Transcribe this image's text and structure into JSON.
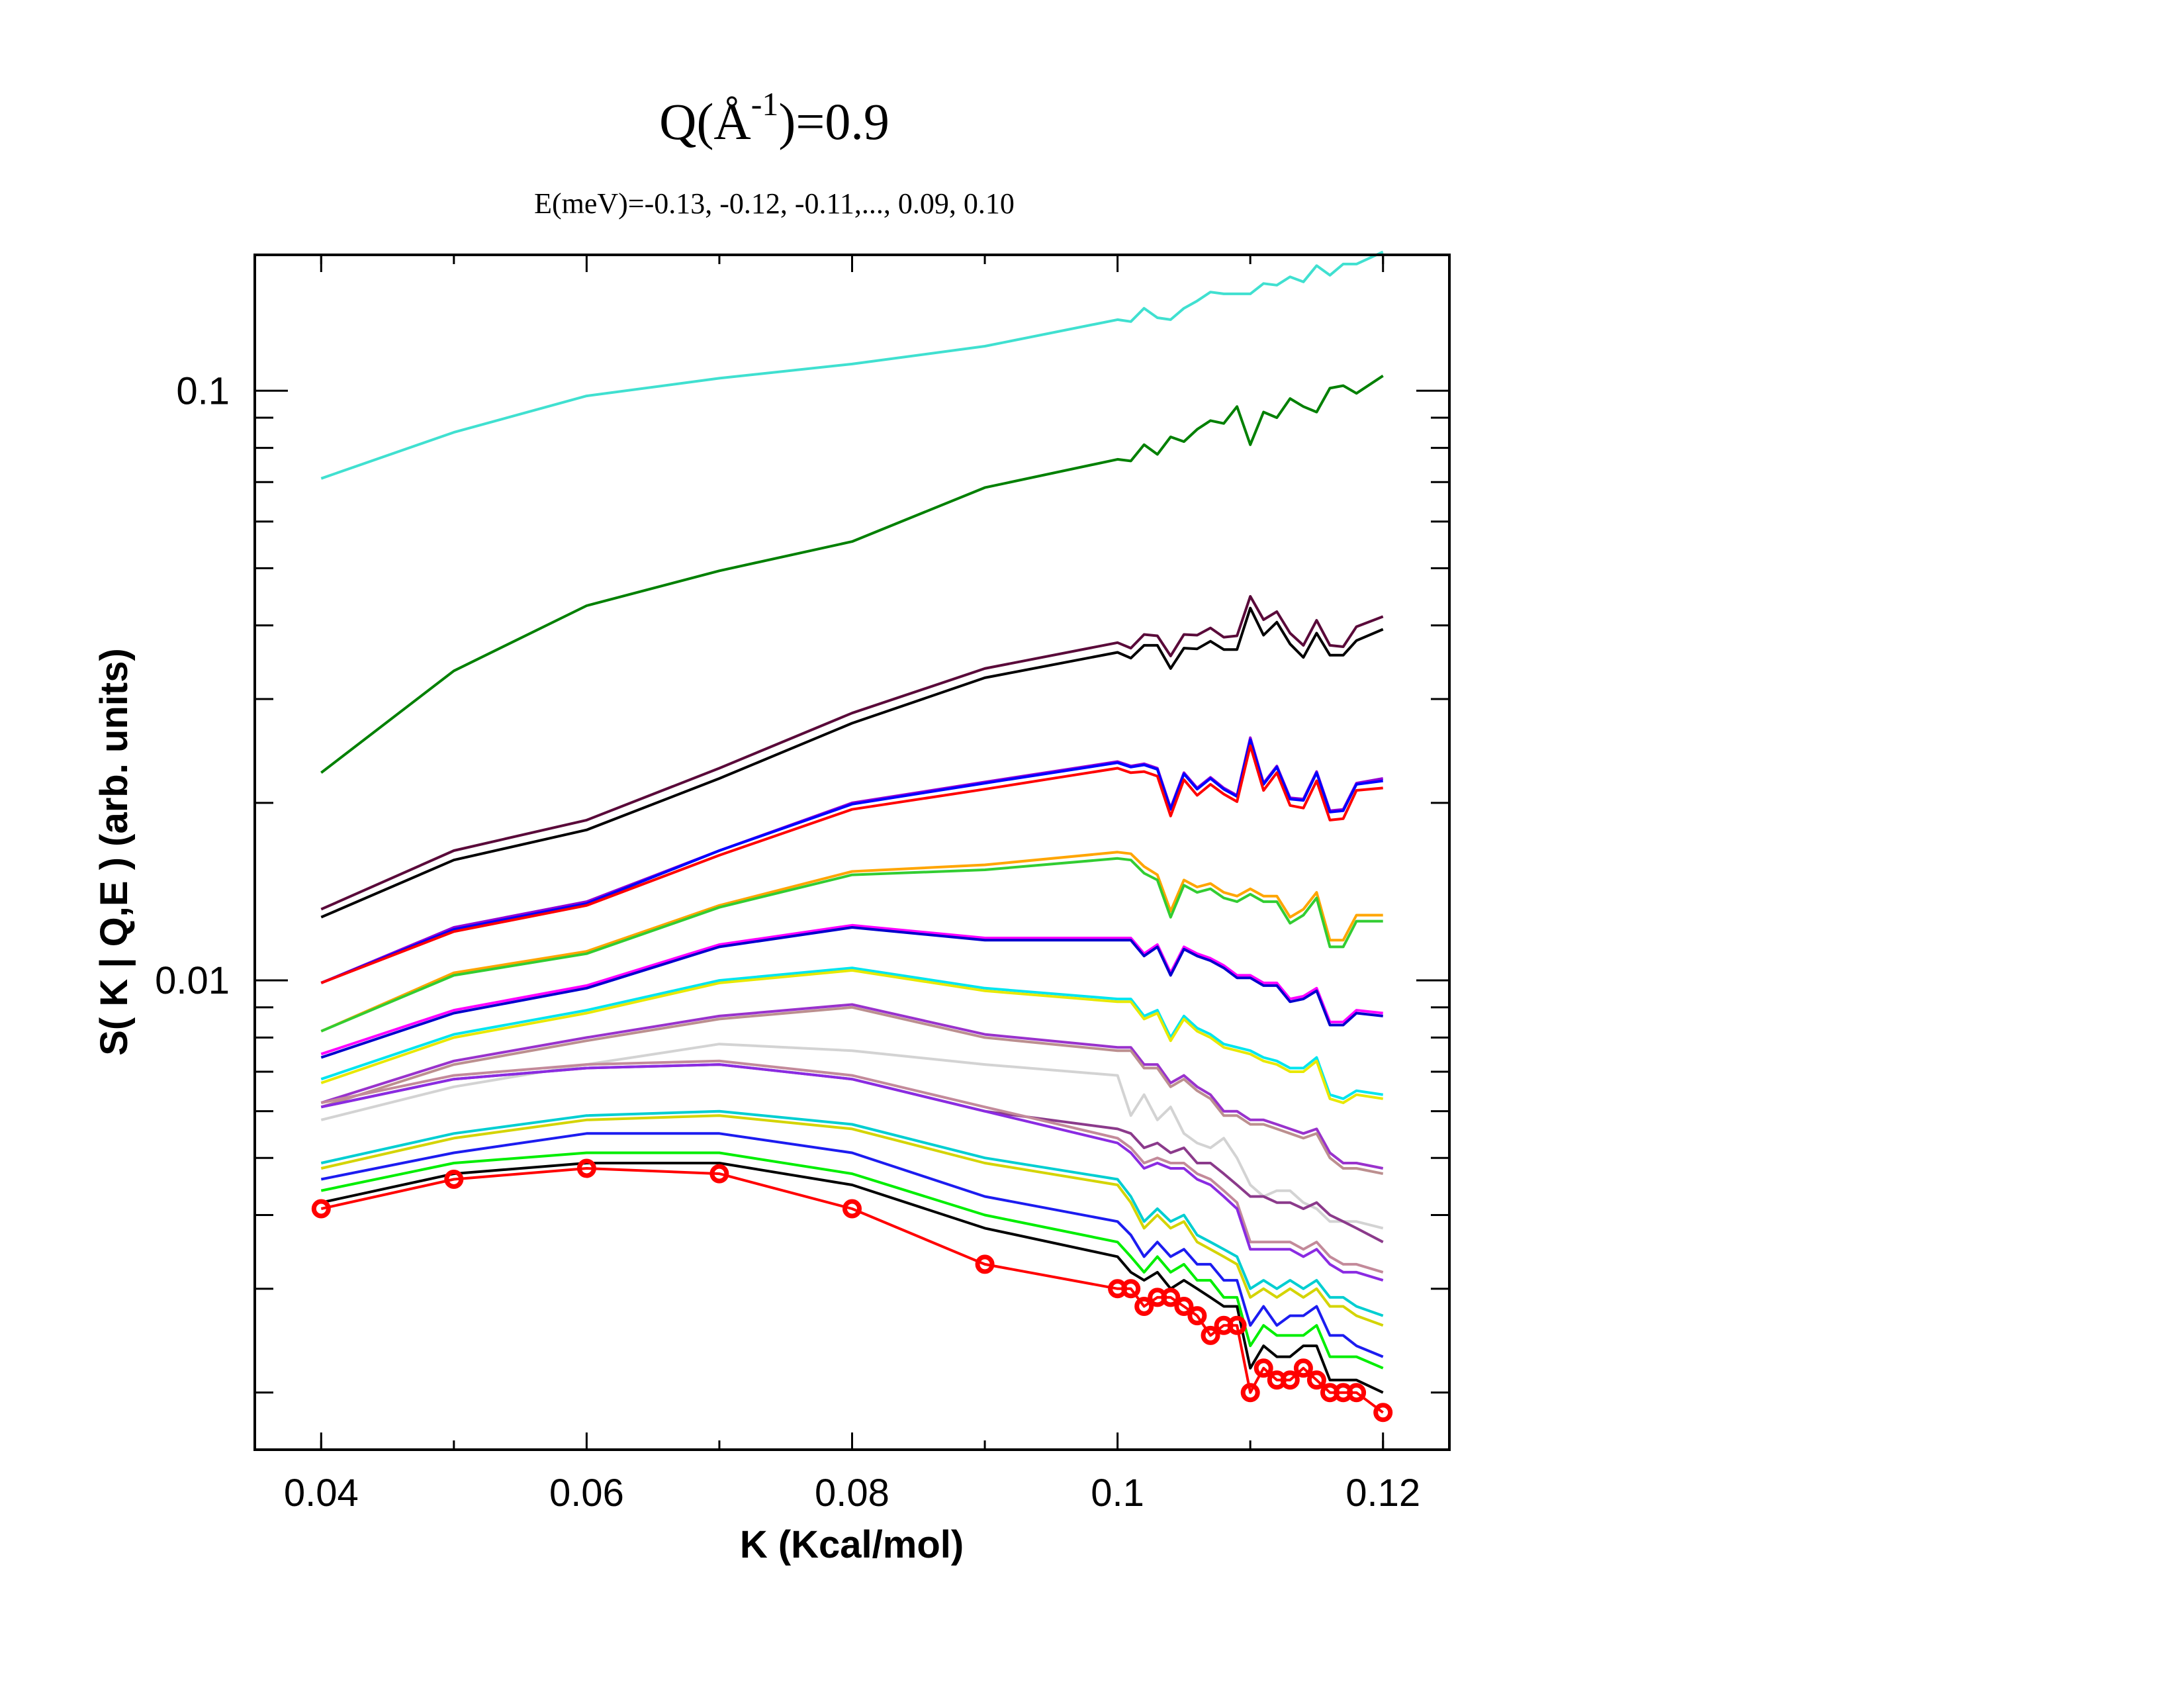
{
  "chart_data": {
    "type": "line",
    "title": {
      "prefix": "Q(Å",
      "sup": "-1",
      "suffix": ")=0.9"
    },
    "subtitle": "E(meV)=-0.13, -0.12, -0.11,..., 0.09, 0.10",
    "xlabel": "K (Kcal/mol)",
    "ylabel": "S( K | Q,E )  (arb. units)",
    "xlim": [
      0.035,
      0.125
    ],
    "ylim": [
      0.0016,
      0.17
    ],
    "yscale": "log",
    "grid": false,
    "x_ticks": [
      {
        "value": 0.04,
        "label": "0.04"
      },
      {
        "value": 0.06,
        "label": "0.06"
      },
      {
        "value": 0.08,
        "label": "0.08"
      },
      {
        "value": 0.1,
        "label": "0.1"
      },
      {
        "value": 0.12,
        "label": "0.12"
      }
    ],
    "y_ticks": [
      {
        "value": 0.01,
        "label": "0.01"
      },
      {
        "value": 0.1,
        "label": "0.1"
      }
    ],
    "x": [
      0.04,
      0.05,
      0.06,
      0.07,
      0.08,
      0.09,
      0.1,
      0.101,
      0.102,
      0.103,
      0.104,
      0.105,
      0.106,
      0.107,
      0.108,
      0.109,
      0.11,
      0.111,
      0.112,
      0.113,
      0.114,
      0.115,
      0.116,
      0.117,
      0.118,
      0.12
    ],
    "series": [
      {
        "color": "#40e0d0",
        "values": [
          0.071,
          0.085,
          0.098,
          0.105,
          0.111,
          0.119,
          0.132,
          0.131,
          0.138,
          0.133,
          0.132,
          0.138,
          0.142,
          0.147,
          0.146,
          0.146,
          0.146,
          0.152,
          0.151,
          0.156,
          0.153,
          0.163,
          0.157,
          0.164,
          0.164,
          0.172
        ]
      },
      {
        "color": "#008000",
        "values": [
          0.0225,
          0.0335,
          0.0432,
          0.0495,
          0.0555,
          0.0685,
          0.0765,
          0.076,
          0.081,
          0.078,
          0.0835,
          0.082,
          0.086,
          0.089,
          0.088,
          0.094,
          0.081,
          0.092,
          0.09,
          0.097,
          0.094,
          0.092,
          0.101,
          0.102,
          0.099,
          0.106
        ]
      },
      {
        "color": "#5a0a3a",
        "values": [
          0.0132,
          0.0166,
          0.0187,
          0.0229,
          0.0284,
          0.0338,
          0.0374,
          0.0366,
          0.0386,
          0.0384,
          0.0355,
          0.0386,
          0.0385,
          0.0396,
          0.0382,
          0.0384,
          0.0448,
          0.0409,
          0.0422,
          0.0388,
          0.037,
          0.0408,
          0.037,
          0.0368,
          0.0398,
          0.0414
        ]
      },
      {
        "color": "#000000",
        "values": [
          0.0128,
          0.016,
          0.018,
          0.022,
          0.0273,
          0.0326,
          0.036,
          0.0352,
          0.037,
          0.037,
          0.0338,
          0.0366,
          0.0365,
          0.0376,
          0.0364,
          0.0364,
          0.0428,
          0.0385,
          0.0405,
          0.0372,
          0.0353,
          0.0388,
          0.0356,
          0.0356,
          0.0377,
          0.0394
        ]
      },
      {
        "color": "#9400d3",
        "values": [
          0.0099,
          0.0123,
          0.0136,
          0.0166,
          0.02,
          0.0217,
          0.0235,
          0.0231,
          0.0233,
          0.0229,
          0.0196,
          0.0225,
          0.0212,
          0.0221,
          0.0212,
          0.0206,
          0.0258,
          0.0216,
          0.0231,
          0.0204,
          0.0203,
          0.0226,
          0.0194,
          0.0195,
          0.0216,
          0.022
        ]
      },
      {
        "color": "#0000ff",
        "values": [
          0.0099,
          0.0122,
          0.0135,
          0.0166,
          0.0199,
          0.0216,
          0.0234,
          0.023,
          0.0232,
          0.0228,
          0.0195,
          0.0224,
          0.0211,
          0.022,
          0.0211,
          0.0205,
          0.0256,
          0.0215,
          0.023,
          0.0203,
          0.0202,
          0.0225,
          0.0193,
          0.0194,
          0.0215,
          0.0218
        ]
      },
      {
        "color": "#ff0000",
        "values": [
          0.0099,
          0.0121,
          0.0134,
          0.0163,
          0.0195,
          0.0211,
          0.0229,
          0.0225,
          0.0226,
          0.0222,
          0.019,
          0.0219,
          0.0206,
          0.0215,
          0.0207,
          0.0201,
          0.025,
          0.021,
          0.0225,
          0.0198,
          0.0196,
          0.0218,
          0.0187,
          0.0188,
          0.021,
          0.0212
        ]
      },
      {
        "color": "#ffa500",
        "values": [
          0.0082,
          0.0103,
          0.0112,
          0.0134,
          0.0153,
          0.0157,
          0.0165,
          0.0164,
          0.0156,
          0.0151,
          0.0131,
          0.0148,
          0.0144,
          0.0146,
          0.0141,
          0.0139,
          0.0143,
          0.0139,
          0.0139,
          0.0128,
          0.0132,
          0.0141,
          0.0117,
          0.0117,
          0.0129,
          0.0129
        ]
      },
      {
        "color": "#32cd32",
        "values": [
          0.0082,
          0.0102,
          0.0111,
          0.0133,
          0.0151,
          0.0154,
          0.0161,
          0.016,
          0.0152,
          0.0148,
          0.0128,
          0.0145,
          0.0141,
          0.0143,
          0.0138,
          0.0136,
          0.014,
          0.0136,
          0.0136,
          0.0125,
          0.0129,
          0.0138,
          0.0114,
          0.0114,
          0.0126,
          0.0126
        ]
      },
      {
        "color": "#ff00ff",
        "values": [
          0.0075,
          0.0089,
          0.0098,
          0.0115,
          0.0124,
          0.0118,
          0.0118,
          0.0118,
          0.0111,
          0.0115,
          0.0103,
          0.0114,
          0.0111,
          0.0109,
          0.0106,
          0.0102,
          0.0102,
          0.0099,
          0.0099,
          0.0093,
          0.0094,
          0.0097,
          0.0085,
          0.0085,
          0.0089,
          0.0088
        ]
      },
      {
        "color": "#0000cd",
        "values": [
          0.0074,
          0.0088,
          0.0097,
          0.0114,
          0.0123,
          0.0117,
          0.0117,
          0.0117,
          0.011,
          0.0114,
          0.0102,
          0.0113,
          0.011,
          0.0108,
          0.0105,
          0.0101,
          0.0101,
          0.0098,
          0.0098,
          0.0092,
          0.0093,
          0.0096,
          0.0084,
          0.0084,
          0.0088,
          0.0087
        ]
      },
      {
        "color": "#00e5ee",
        "values": [
          0.0068,
          0.0081,
          0.0089,
          0.01,
          0.0105,
          0.0097,
          0.0093,
          0.0093,
          0.0087,
          0.0089,
          0.008,
          0.0087,
          0.0083,
          0.0081,
          0.0078,
          0.0077,
          0.0076,
          0.0074,
          0.0073,
          0.0071,
          0.0071,
          0.0074,
          0.0064,
          0.0063,
          0.0065,
          0.0064
        ]
      },
      {
        "color": "#e8e800",
        "values": [
          0.0067,
          0.008,
          0.0088,
          0.0099,
          0.0104,
          0.0096,
          0.0092,
          0.0092,
          0.0086,
          0.0088,
          0.0079,
          0.0086,
          0.0082,
          0.008,
          0.0077,
          0.0076,
          0.0075,
          0.0073,
          0.0072,
          0.007,
          0.007,
          0.0073,
          0.0063,
          0.0062,
          0.0064,
          0.0063
        ]
      },
      {
        "color": "#9932cc",
        "values": [
          0.0062,
          0.0073,
          0.008,
          0.0087,
          0.0091,
          0.0081,
          0.0077,
          0.0077,
          0.0072,
          0.0072,
          0.0067,
          0.0069,
          0.0066,
          0.0064,
          0.006,
          0.006,
          0.0058,
          0.0058,
          0.0057,
          0.0056,
          0.0055,
          0.0056,
          0.0051,
          0.0049,
          0.0049,
          0.0048
        ]
      },
      {
        "color": "#bc8f8f",
        "values": [
          0.0061,
          0.0072,
          0.0079,
          0.0086,
          0.009,
          0.008,
          0.0076,
          0.0076,
          0.0071,
          0.0071,
          0.0066,
          0.0068,
          0.0065,
          0.0063,
          0.0059,
          0.0059,
          0.0057,
          0.0057,
          0.0056,
          0.0055,
          0.0054,
          0.0055,
          0.005,
          0.0048,
          0.0048,
          0.0047
        ]
      },
      {
        "color": "#d3d3d3",
        "values": [
          0.0058,
          0.0066,
          0.0072,
          0.0078,
          0.0076,
          0.0072,
          0.0069,
          0.0059,
          0.0064,
          0.0058,
          0.0061,
          0.0055,
          0.0053,
          0.0052,
          0.0054,
          0.005,
          0.0045,
          0.0043,
          0.0044,
          0.0044,
          0.0042,
          0.0041,
          0.0039,
          0.0039,
          0.0039,
          0.0038
        ]
      },
      {
        "color": "#8b3a8b",
        "values": [
          0.0061,
          0.0068,
          0.0071,
          0.0072,
          0.0068,
          0.006,
          0.0056,
          0.0055,
          0.0052,
          0.0053,
          0.0051,
          0.0052,
          0.0049,
          0.0049,
          0.0047,
          0.0045,
          0.0043,
          0.0043,
          0.0042,
          0.0042,
          0.0041,
          0.0042,
          0.004,
          0.0039,
          0.0038,
          0.0036
        ]
      },
      {
        "color": "#c38a9a",
        "values": [
          0.0062,
          0.0069,
          0.0072,
          0.0073,
          0.0069,
          0.0061,
          0.0054,
          0.0052,
          0.0049,
          0.005,
          0.0049,
          0.0049,
          0.0047,
          0.0046,
          0.0044,
          0.0042,
          0.0036,
          0.0036,
          0.0036,
          0.0036,
          0.0035,
          0.0036,
          0.0034,
          0.0033,
          0.0033,
          0.0032
        ]
      },
      {
        "color": "#8a2be2",
        "values": [
          0.0061,
          0.0068,
          0.0071,
          0.0072,
          0.0068,
          0.006,
          0.0053,
          0.0051,
          0.0048,
          0.0049,
          0.0048,
          0.0048,
          0.0046,
          0.0045,
          0.0043,
          0.0041,
          0.0035,
          0.0035,
          0.0035,
          0.0035,
          0.0034,
          0.0035,
          0.0033,
          0.0032,
          0.0032,
          0.0031
        ]
      },
      {
        "color": "#00ced1",
        "values": [
          0.0049,
          0.0055,
          0.0059,
          0.006,
          0.0057,
          0.005,
          0.0046,
          0.0043,
          0.0039,
          0.0041,
          0.0039,
          0.004,
          0.0037,
          0.0036,
          0.0035,
          0.0034,
          0.003,
          0.0031,
          0.003,
          0.0031,
          0.003,
          0.0031,
          0.0029,
          0.0029,
          0.0028,
          0.0027
        ]
      },
      {
        "color": "#d4d400",
        "values": [
          0.0048,
          0.0054,
          0.0058,
          0.0059,
          0.0056,
          0.0049,
          0.0045,
          0.0042,
          0.0038,
          0.004,
          0.0038,
          0.0039,
          0.0036,
          0.0035,
          0.0034,
          0.0033,
          0.0029,
          0.003,
          0.0029,
          0.003,
          0.0029,
          0.003,
          0.0028,
          0.0028,
          0.0027,
          0.0026
        ]
      },
      {
        "color": "#1c1cf0",
        "values": [
          0.0046,
          0.0051,
          0.0055,
          0.0055,
          0.0051,
          0.0043,
          0.0039,
          0.0037,
          0.0034,
          0.0036,
          0.0034,
          0.0035,
          0.0033,
          0.0033,
          0.0031,
          0.0031,
          0.0026,
          0.0028,
          0.0026,
          0.0027,
          0.0027,
          0.0028,
          0.0025,
          0.0025,
          0.0024,
          0.0023
        ]
      },
      {
        "color": "#00ee00",
        "values": [
          0.0044,
          0.0049,
          0.0051,
          0.0051,
          0.0047,
          0.004,
          0.0036,
          0.0034,
          0.0032,
          0.0034,
          0.0032,
          0.0033,
          0.0031,
          0.0031,
          0.0029,
          0.0029,
          0.0024,
          0.0026,
          0.0025,
          0.0025,
          0.0025,
          0.0026,
          0.0023,
          0.0023,
          0.0023,
          0.0022
        ]
      },
      {
        "color": "#000000",
        "values": [
          0.0042,
          0.0047,
          0.0049,
          0.0049,
          0.0045,
          0.0038,
          0.0034,
          0.0032,
          0.0031,
          0.0032,
          0.003,
          0.0031,
          0.003,
          0.0029,
          0.0028,
          0.0028,
          0.0022,
          0.0024,
          0.0023,
          0.0023,
          0.0024,
          0.0024,
          0.0021,
          0.0021,
          0.0021,
          0.002
        ]
      },
      {
        "color": "#ff0000",
        "marker": "circle",
        "values": [
          0.0041,
          0.0046,
          0.0048,
          0.0047,
          0.0041,
          0.0033,
          0.003,
          0.003,
          0.0028,
          0.0029,
          0.0029,
          0.0028,
          0.0027,
          0.0025,
          0.0026,
          0.0026,
          0.002,
          0.0022,
          0.0021,
          0.0021,
          0.0022,
          0.0021,
          0.002,
          0.002,
          0.002,
          0.00185
        ]
      }
    ]
  }
}
